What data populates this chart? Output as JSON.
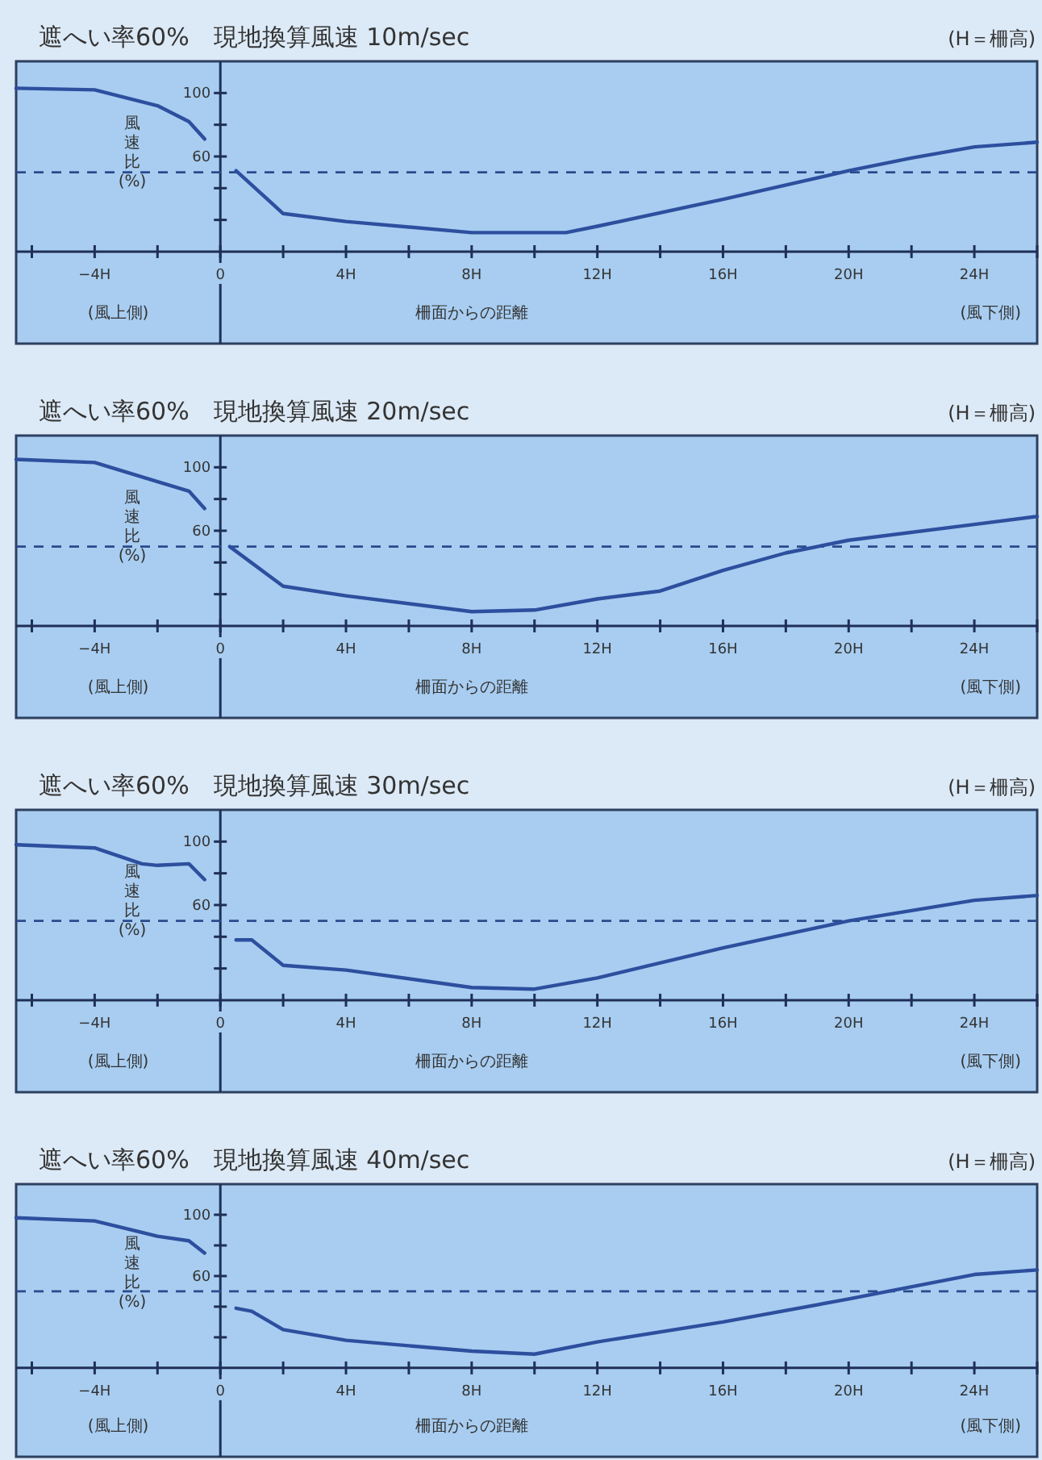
{
  "chart_data": [
    {
      "type": "line",
      "title": "遮へい率60%　現地換算風速 10m/sec",
      "xlabel": "柵面からの距離",
      "ylabel": "風速比(%)",
      "annotations": [
        "(H＝柵高)",
        "(風上側)",
        "(風下側)"
      ],
      "xlim": [
        -6.5,
        26
      ],
      "ylim": [
        -58,
        120
      ],
      "xticks": [
        {
          "value": -6,
          "label": null
        },
        {
          "value": -4,
          "label": "−4H"
        },
        {
          "value": -2,
          "label": null
        },
        {
          "value": 0,
          "label": "0"
        },
        {
          "value": 2,
          "label": null
        },
        {
          "value": 4,
          "label": "4H"
        },
        {
          "value": 6,
          "label": null
        },
        {
          "value": 8,
          "label": "8H"
        },
        {
          "value": 10,
          "label": null
        },
        {
          "value": 12,
          "label": "12H"
        },
        {
          "value": 14,
          "label": null
        },
        {
          "value": 16,
          "label": "16H"
        },
        {
          "value": 18,
          "label": null
        },
        {
          "value": 20,
          "label": "20H"
        },
        {
          "value": 22,
          "label": null
        },
        {
          "value": 24,
          "label": "24H"
        },
        {
          "value": 26,
          "label": null
        }
      ],
      "yticks": [
        {
          "value": 20,
          "label": null
        },
        {
          "value": 40,
          "label": null
        },
        {
          "value": 60,
          "label": "60"
        },
        {
          "value": 80,
          "label": null
        },
        {
          "value": 100,
          "label": "100"
        }
      ],
      "ref_lines": [
        {
          "axis": "y",
          "value": 50,
          "line_style": "dashed",
          "color": "#2b4a8c"
        }
      ],
      "series": [
        {
          "color": "#2d4f9e",
          "x": [
            -6.5,
            -4,
            -2,
            -1,
            -0.5
          ],
          "values": [
            103,
            102,
            92,
            82,
            71
          ]
        },
        {
          "color": "#2d4f9e",
          "x": [
            0.5,
            2,
            4,
            8,
            11,
            12,
            16,
            20,
            22,
            24,
            26
          ],
          "values": [
            51,
            24,
            19,
            12,
            12,
            16,
            33,
            51,
            59,
            66,
            69
          ]
        }
      ]
    },
    {
      "type": "line",
      "title": "遮へい率60%　現地換算風速 20m/sec",
      "xlabel": "柵面からの距離",
      "ylabel": "風速比(%)",
      "annotations": [
        "(H＝柵高)",
        "(風上側)",
        "(風下側)"
      ],
      "xlim": [
        -6.5,
        26
      ],
      "ylim": [
        -58,
        120
      ],
      "xticks": [
        {
          "value": -6,
          "label": null
        },
        {
          "value": -4,
          "label": "−4H"
        },
        {
          "value": -2,
          "label": null
        },
        {
          "value": 0,
          "label": "0"
        },
        {
          "value": 2,
          "label": null
        },
        {
          "value": 4,
          "label": "4H"
        },
        {
          "value": 6,
          "label": null
        },
        {
          "value": 8,
          "label": "8H"
        },
        {
          "value": 10,
          "label": null
        },
        {
          "value": 12,
          "label": "12H"
        },
        {
          "value": 14,
          "label": null
        },
        {
          "value": 16,
          "label": "16H"
        },
        {
          "value": 18,
          "label": null
        },
        {
          "value": 20,
          "label": "20H"
        },
        {
          "value": 22,
          "label": null
        },
        {
          "value": 24,
          "label": "24H"
        },
        {
          "value": 26,
          "label": null
        }
      ],
      "yticks": [
        {
          "value": 20,
          "label": null
        },
        {
          "value": 40,
          "label": null
        },
        {
          "value": 60,
          "label": "60"
        },
        {
          "value": 80,
          "label": null
        },
        {
          "value": 100,
          "label": "100"
        }
      ],
      "ref_lines": [
        {
          "axis": "y",
          "value": 50,
          "line_style": "dashed",
          "color": "#2b4a8c"
        }
      ],
      "series": [
        {
          "color": "#2d4f9e",
          "x": [
            -6.5,
            -4,
            -2,
            -1,
            -0.5
          ],
          "values": [
            105,
            103,
            91,
            85,
            74
          ]
        },
        {
          "color": "#2d4f9e",
          "x": [
            0.3,
            2,
            4,
            8,
            10,
            12,
            14,
            16,
            18,
            20,
            24,
            26
          ],
          "values": [
            50,
            25,
            19,
            9,
            10,
            17,
            22,
            35,
            46,
            54,
            64,
            69
          ]
        }
      ]
    },
    {
      "type": "line",
      "title": "遮へい率60%　現地換算風速 30m/sec",
      "xlabel": "柵面からの距離",
      "ylabel": "風速比(%)",
      "annotations": [
        "(H＝柵高)",
        "(風上側)",
        "(風下側)"
      ],
      "xlim": [
        -6.5,
        26
      ],
      "ylim": [
        -58,
        120
      ],
      "xticks": [
        {
          "value": -6,
          "label": null
        },
        {
          "value": -4,
          "label": "−4H"
        },
        {
          "value": -2,
          "label": null
        },
        {
          "value": 0,
          "label": "0"
        },
        {
          "value": 2,
          "label": null
        },
        {
          "value": 4,
          "label": "4H"
        },
        {
          "value": 6,
          "label": null
        },
        {
          "value": 8,
          "label": "8H"
        },
        {
          "value": 10,
          "label": null
        },
        {
          "value": 12,
          "label": "12H"
        },
        {
          "value": 14,
          "label": null
        },
        {
          "value": 16,
          "label": "16H"
        },
        {
          "value": 18,
          "label": null
        },
        {
          "value": 20,
          "label": "20H"
        },
        {
          "value": 22,
          "label": null
        },
        {
          "value": 24,
          "label": "24H"
        },
        {
          "value": 26,
          "label": null
        }
      ],
      "yticks": [
        {
          "value": 20,
          "label": null
        },
        {
          "value": 40,
          "label": null
        },
        {
          "value": 60,
          "label": "60"
        },
        {
          "value": 80,
          "label": null
        },
        {
          "value": 100,
          "label": "100"
        }
      ],
      "ref_lines": [
        {
          "axis": "y",
          "value": 50,
          "line_style": "dashed",
          "color": "#2b4a8c"
        }
      ],
      "series": [
        {
          "color": "#2d4f9e",
          "x": [
            -6.5,
            -4,
            -2.5,
            -2,
            -1,
            -0.5
          ],
          "values": [
            98,
            96,
            86,
            85,
            86,
            76
          ]
        },
        {
          "color": "#2d4f9e",
          "x": [
            0.5,
            1,
            2,
            4,
            8,
            10,
            12,
            16,
            20,
            24,
            26
          ],
          "values": [
            38,
            38,
            22,
            19,
            8,
            7,
            14,
            33,
            50,
            63,
            66
          ]
        }
      ]
    },
    {
      "type": "line",
      "title": "遮へい率60%　現地換算風速 40m/sec",
      "xlabel": "柵面からの距離",
      "ylabel": "風速比(%)",
      "annotations": [
        "(H＝柵高)",
        "(風上側)",
        "(風下側)"
      ],
      "xlim": [
        -6.5,
        26
      ],
      "ylim": [
        -58,
        120
      ],
      "xticks": [
        {
          "value": -6,
          "label": null
        },
        {
          "value": -4,
          "label": "−4H"
        },
        {
          "value": -2,
          "label": null
        },
        {
          "value": 0,
          "label": "0"
        },
        {
          "value": 2,
          "label": null
        },
        {
          "value": 4,
          "label": "4H"
        },
        {
          "value": 6,
          "label": null
        },
        {
          "value": 8,
          "label": "8H"
        },
        {
          "value": 10,
          "label": null
        },
        {
          "value": 12,
          "label": "12H"
        },
        {
          "value": 14,
          "label": null
        },
        {
          "value": 16,
          "label": "16H"
        },
        {
          "value": 18,
          "label": null
        },
        {
          "value": 20,
          "label": "20H"
        },
        {
          "value": 22,
          "label": null
        },
        {
          "value": 24,
          "label": "24H"
        },
        {
          "value": 26,
          "label": null
        }
      ],
      "yticks": [
        {
          "value": 20,
          "label": null
        },
        {
          "value": 40,
          "label": null
        },
        {
          "value": 60,
          "label": "60"
        },
        {
          "value": 80,
          "label": null
        },
        {
          "value": 100,
          "label": "100"
        }
      ],
      "ref_lines": [
        {
          "axis": "y",
          "value": 50,
          "line_style": "dashed",
          "color": "#2b4a8c"
        }
      ],
      "series": [
        {
          "color": "#2d4f9e",
          "x": [
            -6.5,
            -4,
            -2,
            -1,
            -0.5
          ],
          "values": [
            98,
            96,
            86,
            83,
            75
          ]
        },
        {
          "color": "#2d4f9e",
          "x": [
            0.5,
            1,
            2,
            4,
            8,
            10,
            12,
            16,
            20,
            24,
            26
          ],
          "values": [
            39,
            37,
            25,
            18,
            11,
            9,
            17,
            30,
            45,
            61,
            64
          ]
        }
      ]
    }
  ]
}
